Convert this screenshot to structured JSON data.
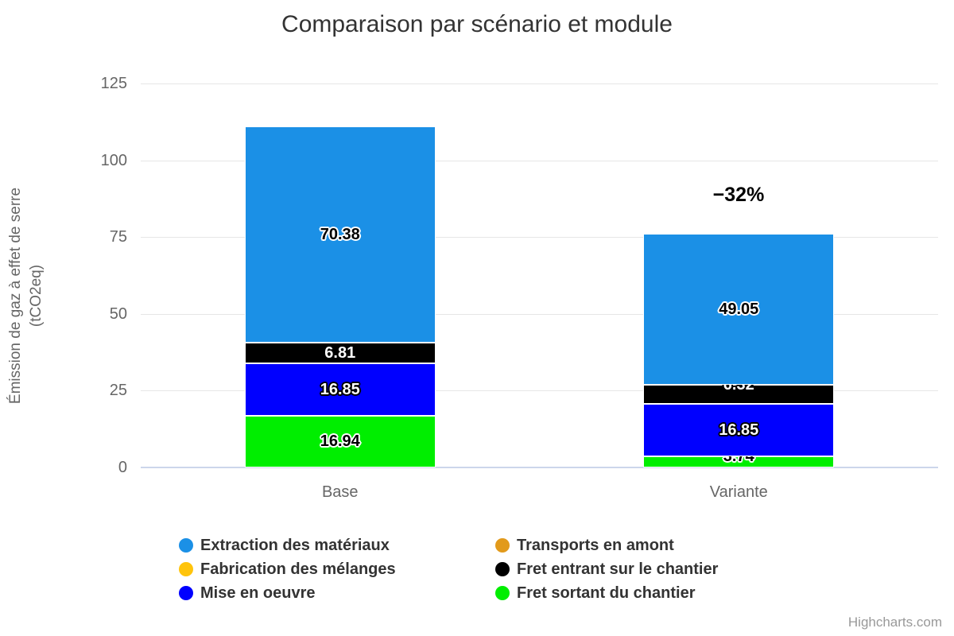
{
  "title": "Comparaison par scénario et module",
  "y_axis": {
    "title_line1": "Émission de gaz à effet de serre",
    "title_line2": "(tCO2eq)",
    "ticks": [
      0,
      25,
      50,
      75,
      100,
      125
    ],
    "max": 125
  },
  "annotation": {
    "text": "−32%",
    "category": "Variante"
  },
  "credits": "Highcharts.com",
  "colors": {
    "grid": "#e6e6e6",
    "axis_line": "#ccd6eb",
    "title_text": "#333333",
    "axis_text": "#666666",
    "legend_text": "#333333",
    "credits_text": "#999999"
  },
  "chart_data": {
    "type": "bar",
    "stacked": true,
    "title": "Comparaison par scénario et module",
    "ylabel": "Émission de gaz à effet de serre (tCO2eq)",
    "xlabel": "",
    "ylim": [
      0,
      125
    ],
    "grid": true,
    "legend_position": "bottom",
    "categories": [
      "Base",
      "Variante"
    ],
    "series": [
      {
        "name": "Extraction des matériaux",
        "color": "#1b90e6",
        "values": [
          70.38,
          49.05
        ],
        "label_color": "#000000",
        "label_outline": "#ffffff"
      },
      {
        "name": "Transports en amont",
        "color": "#e29a1b",
        "values": [
          0,
          0
        ]
      },
      {
        "name": "Fabrication des mélanges",
        "color": "#ffc40c",
        "values": [
          0,
          0
        ]
      },
      {
        "name": "Fret entrant sur le chantier",
        "color": "#000000",
        "values": [
          6.81,
          6.32
        ],
        "label_color": "#ffffff",
        "label_outline": "#000000"
      },
      {
        "name": "Mise en oeuvre",
        "color": "#0000ff",
        "values": [
          16.85,
          16.85
        ],
        "label_color": "#ffffff",
        "label_outline": "#000000"
      },
      {
        "name": "Fret sortant du chantier",
        "color": "#00ee00",
        "values": [
          16.94,
          3.74
        ],
        "label_color": "#000000",
        "label_outline": "#ffffff"
      }
    ],
    "stack_totals": [
      110.98,
      75.96
    ],
    "annotations": [
      {
        "text": "−32%",
        "category": "Variante"
      }
    ]
  }
}
